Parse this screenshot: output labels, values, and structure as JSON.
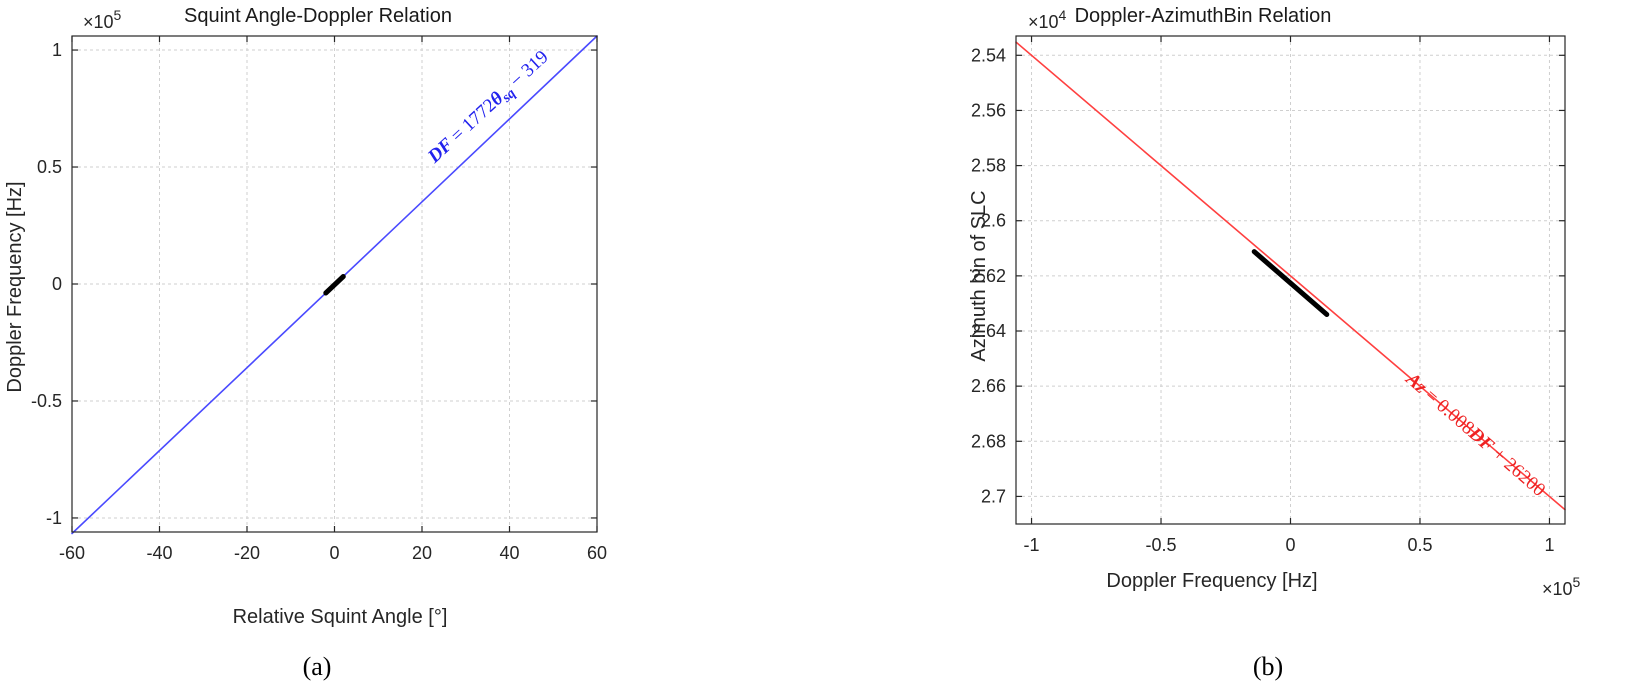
{
  "chart_data": [
    {
      "type": "line",
      "panel_label": "(a)",
      "title": "Squint Angle-Doppler Relation",
      "xlabel": "Relative Squint Angle [°]",
      "ylabel": "Doppler Frequency [Hz]",
      "xlim": [
        -60,
        60
      ],
      "ylim": [
        -106000,
        106000
      ],
      "xticks": [
        -60,
        -40,
        -20,
        0,
        20,
        40,
        60
      ],
      "xtick_labels": [
        "-60",
        "-40",
        "-20",
        "0",
        "20",
        "40",
        "60"
      ],
      "yticks": [
        -100000,
        -50000,
        0,
        50000,
        100000
      ],
      "ytick_labels": [
        "-1",
        "-0.5",
        "0",
        "0.5",
        "1"
      ],
      "y_multiplier": {
        "base": "×10",
        "exp": "5"
      },
      "grid": true,
      "series": [
        {
          "color": "#4a4aff",
          "x": [
            -60,
            60
          ],
          "y": [
            -106639,
            105999
          ]
        },
        {
          "color": "#000000",
          "x": [
            -2,
            2
          ],
          "y": [
            -3863,
            3225
          ]
        }
      ],
      "annotation": {
        "text": "DF = 1772θsq − 319",
        "color": "#2222ee"
      }
    },
    {
      "type": "line",
      "panel_label": "(b)",
      "title": "Doppler-AzimuthBin Relation",
      "xlabel": "Doppler Frequency [Hz]",
      "ylabel": "Azimuth bin of SLC",
      "xlim": [
        -106000,
        106000
      ],
      "ylim": [
        25330,
        27100
      ],
      "y_reversed": true,
      "xticks": [
        -100000,
        -50000,
        0,
        50000,
        100000
      ],
      "xtick_labels": [
        "-1",
        "-0.5",
        "0",
        "0.5",
        "1"
      ],
      "x_multiplier": {
        "base": "×10",
        "exp": "5"
      },
      "yticks": [
        25400,
        25600,
        25800,
        26000,
        26200,
        26400,
        26600,
        26800,
        27000
      ],
      "ytick_labels": [
        "2.54",
        "2.56",
        "2.58",
        "2.6",
        "2.62",
        "2.64",
        "2.66",
        "2.68",
        "2.7"
      ],
      "y_multiplier": {
        "base": "×10",
        "exp": "4"
      },
      "grid": true,
      "series": [
        {
          "color": "#ff4040",
          "x": [
            -106000,
            106000
          ],
          "y": [
            25352,
            27048
          ]
        },
        {
          "color": "#000000",
          "x": [
            -14000,
            14000
          ],
          "y": [
            26112,
            26340
          ]
        }
      ],
      "annotation": {
        "text": "Az = 0.008DF + 26200",
        "color": "#ee2222"
      }
    }
  ]
}
